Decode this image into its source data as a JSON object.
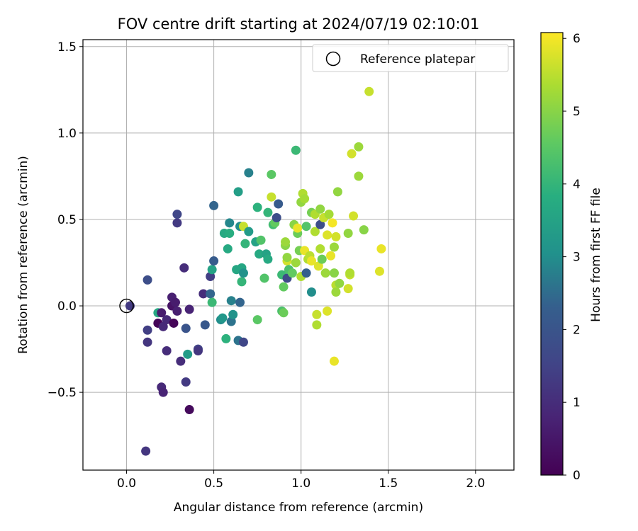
{
  "chart_data": {
    "type": "scatter",
    "title": "FOV centre drift starting at 2024/07/19 02:10:01",
    "xlabel": "Angular distance from reference (arcmin)",
    "ylabel": "Rotation from reference (arcmin)",
    "xlim": [
      -0.25,
      2.22
    ],
    "ylim": [
      -0.95,
      1.54
    ],
    "xticks": [
      0.0,
      0.5,
      1.0,
      1.5,
      2.0
    ],
    "xtick_labels": [
      "0.0",
      "0.5",
      "1.0",
      "1.5",
      "2.0"
    ],
    "yticks": [
      -0.5,
      0.0,
      0.5,
      1.0,
      1.5
    ],
    "ytick_labels": [
      "−0.5",
      "0.0",
      "0.5",
      "1.0",
      "1.5"
    ],
    "grid": true,
    "colormap": "viridis",
    "colorbar": {
      "label": "Hours from first FF file",
      "range": [
        0,
        6.08
      ],
      "ticks": [
        0,
        1,
        2,
        3,
        4,
        5,
        6
      ],
      "tick_labels": [
        "0",
        "1",
        "2",
        "3",
        "4",
        "5",
        "6"
      ]
    },
    "legend": {
      "position": "top-right",
      "entries": [
        "Reference platepar"
      ]
    },
    "reference_point": {
      "x": 0.0,
      "y": 0.0
    },
    "points": [
      {
        "x": 0.02,
        "y": 0.0,
        "h": 1.3
      },
      {
        "x": 0.12,
        "y": 0.15,
        "h": 1.8
      },
      {
        "x": 0.12,
        "y": -0.14,
        "h": 1.4
      },
      {
        "x": 0.12,
        "y": -0.21,
        "h": 1.2
      },
      {
        "x": 0.11,
        "y": -0.84,
        "h": 1.2
      },
      {
        "x": 0.18,
        "y": -0.04,
        "h": 3.7
      },
      {
        "x": 0.18,
        "y": -0.1,
        "h": 0.1
      },
      {
        "x": 0.2,
        "y": -0.04,
        "h": 0.6
      },
      {
        "x": 0.21,
        "y": -0.12,
        "h": 0.9
      },
      {
        "x": 0.2,
        "y": -0.47,
        "h": 0.9
      },
      {
        "x": 0.21,
        "y": -0.5,
        "h": 0.8
      },
      {
        "x": 0.23,
        "y": -0.08,
        "h": 0.9
      },
      {
        "x": 0.23,
        "y": -0.26,
        "h": 1.0
      },
      {
        "x": 0.26,
        "y": 0.05,
        "h": 0.7
      },
      {
        "x": 0.26,
        "y": 0.0,
        "h": 0.4
      },
      {
        "x": 0.28,
        "y": 0.02,
        "h": 0.6
      },
      {
        "x": 0.27,
        "y": -0.1,
        "h": 0.1
      },
      {
        "x": 0.29,
        "y": -0.03,
        "h": 0.7
      },
      {
        "x": 0.29,
        "y": 0.48,
        "h": 1.3
      },
      {
        "x": 0.29,
        "y": 0.53,
        "h": 1.6
      },
      {
        "x": 0.31,
        "y": -0.32,
        "h": 1.0
      },
      {
        "x": 0.33,
        "y": 0.22,
        "h": 1.0
      },
      {
        "x": 0.34,
        "y": -0.13,
        "h": 2.0
      },
      {
        "x": 0.34,
        "y": -0.44,
        "h": 1.3
      },
      {
        "x": 0.35,
        "y": -0.28,
        "h": 3.3
      },
      {
        "x": 0.36,
        "y": -0.6,
        "h": 0.2
      },
      {
        "x": 0.36,
        "y": -0.02,
        "h": 0.8
      },
      {
        "x": 0.41,
        "y": -0.25,
        "h": 1.5
      },
      {
        "x": 0.41,
        "y": -0.26,
        "h": 1.2
      },
      {
        "x": 0.44,
        "y": 0.07,
        "h": 1.0
      },
      {
        "x": 0.45,
        "y": -0.11,
        "h": 2.1
      },
      {
        "x": 0.48,
        "y": 0.17,
        "h": 1.4
      },
      {
        "x": 0.48,
        "y": 0.07,
        "h": 2.4
      },
      {
        "x": 0.49,
        "y": 0.21,
        "h": 3.5
      },
      {
        "x": 0.49,
        "y": 0.02,
        "h": 4.1
      },
      {
        "x": 0.5,
        "y": 0.26,
        "h": 2.2
      },
      {
        "x": 0.5,
        "y": 0.58,
        "h": 2.4
      },
      {
        "x": 0.54,
        "y": -0.08,
        "h": 3.0
      },
      {
        "x": 0.55,
        "y": -0.07,
        "h": 3.2
      },
      {
        "x": 0.56,
        "y": 0.42,
        "h": 3.7
      },
      {
        "x": 0.57,
        "y": -0.19,
        "h": 3.9
      },
      {
        "x": 0.58,
        "y": 0.33,
        "h": 3.7
      },
      {
        "x": 0.59,
        "y": 0.48,
        "h": 2.9
      },
      {
        "x": 0.6,
        "y": -0.09,
        "h": 2.6
      },
      {
        "x": 0.59,
        "y": 0.42,
        "h": 3.8
      },
      {
        "x": 0.6,
        "y": 0.03,
        "h": 2.8
      },
      {
        "x": 0.61,
        "y": -0.05,
        "h": 3.1
      },
      {
        "x": 0.63,
        "y": 0.21,
        "h": 3.6
      },
      {
        "x": 0.64,
        "y": -0.2,
        "h": 2.6
      },
      {
        "x": 0.64,
        "y": 0.66,
        "h": 3.4
      },
      {
        "x": 0.65,
        "y": 0.02,
        "h": 2.4
      },
      {
        "x": 0.65,
        "y": 0.46,
        "h": 3.0
      },
      {
        "x": 0.66,
        "y": 0.14,
        "h": 4.0
      },
      {
        "x": 0.66,
        "y": 0.22,
        "h": 3.6
      },
      {
        "x": 0.67,
        "y": 0.46,
        "h": 5.6
      },
      {
        "x": 0.67,
        "y": -0.21,
        "h": 1.6
      },
      {
        "x": 0.67,
        "y": 0.19,
        "h": 3.1
      },
      {
        "x": 0.68,
        "y": 0.36,
        "h": 4.0
      },
      {
        "x": 0.7,
        "y": 0.43,
        "h": 3.3
      },
      {
        "x": 0.7,
        "y": 0.77,
        "h": 2.8
      },
      {
        "x": 0.74,
        "y": 0.37,
        "h": 3.5
      },
      {
        "x": 0.75,
        "y": -0.08,
        "h": 4.5
      },
      {
        "x": 0.75,
        "y": 0.57,
        "h": 3.9
      },
      {
        "x": 0.76,
        "y": 0.3,
        "h": 3.7
      },
      {
        "x": 0.77,
        "y": 0.38,
        "h": 4.4
      },
      {
        "x": 0.79,
        "y": 0.16,
        "h": 4.4
      },
      {
        "x": 0.8,
        "y": 0.3,
        "h": 3.5
      },
      {
        "x": 0.81,
        "y": 0.54,
        "h": 4.0
      },
      {
        "x": 0.81,
        "y": 0.27,
        "h": 3.7
      },
      {
        "x": 0.83,
        "y": 0.76,
        "h": 4.5
      },
      {
        "x": 0.83,
        "y": 0.63,
        "h": 5.6
      },
      {
        "x": 0.84,
        "y": 0.47,
        "h": 4.2
      },
      {
        "x": 0.85,
        "y": 0.48,
        "h": 4.6
      },
      {
        "x": 0.86,
        "y": 0.51,
        "h": 1.8
      },
      {
        "x": 0.87,
        "y": 0.59,
        "h": 2.2
      },
      {
        "x": 0.89,
        "y": 0.18,
        "h": 4.1
      },
      {
        "x": 0.89,
        "y": -0.03,
        "h": 4.3
      },
      {
        "x": 0.9,
        "y": 0.11,
        "h": 4.6
      },
      {
        "x": 0.9,
        "y": -0.04,
        "h": 4.7
      },
      {
        "x": 0.91,
        "y": 0.35,
        "h": 5.0
      },
      {
        "x": 0.91,
        "y": 0.37,
        "h": 5.2
      },
      {
        "x": 0.92,
        "y": 0.16,
        "h": 1.7
      },
      {
        "x": 0.92,
        "y": 0.26,
        "h": 5.7
      },
      {
        "x": 0.92,
        "y": 0.28,
        "h": 5.1
      },
      {
        "x": 0.93,
        "y": 0.21,
        "h": 4.3
      },
      {
        "x": 0.95,
        "y": 0.19,
        "h": 4.6
      },
      {
        "x": 0.96,
        "y": 0.47,
        "h": 5.0
      },
      {
        "x": 0.97,
        "y": 0.9,
        "h": 4.1
      },
      {
        "x": 0.97,
        "y": 0.25,
        "h": 5.2
      },
      {
        "x": 0.98,
        "y": 0.42,
        "h": 4.7
      },
      {
        "x": 0.98,
        "y": 0.45,
        "h": 5.9
      },
      {
        "x": 0.99,
        "y": 0.32,
        "h": 4.8
      },
      {
        "x": 1.0,
        "y": 0.6,
        "h": 5.1
      },
      {
        "x": 1.0,
        "y": 0.17,
        "h": 5.4
      },
      {
        "x": 1.01,
        "y": 0.65,
        "h": 5.4
      },
      {
        "x": 1.02,
        "y": 0.62,
        "h": 5.3
      },
      {
        "x": 1.02,
        "y": 0.32,
        "h": 5.9
      },
      {
        "x": 1.03,
        "y": 0.19,
        "h": 2.3
      },
      {
        "x": 1.03,
        "y": 0.46,
        "h": 4.4
      },
      {
        "x": 1.04,
        "y": 0.27,
        "h": 5.4
      },
      {
        "x": 1.05,
        "y": 0.29,
        "h": 5.5
      },
      {
        "x": 1.06,
        "y": 0.26,
        "h": 5.9
      },
      {
        "x": 1.06,
        "y": 0.08,
        "h": 3.0
      },
      {
        "x": 1.06,
        "y": 0.54,
        "h": 4.8
      },
      {
        "x": 1.08,
        "y": 0.53,
        "h": 5.4
      },
      {
        "x": 1.08,
        "y": 0.43,
        "h": 5.4
      },
      {
        "x": 1.09,
        "y": -0.11,
        "h": 5.4
      },
      {
        "x": 1.09,
        "y": -0.05,
        "h": 5.6
      },
      {
        "x": 1.1,
        "y": 0.23,
        "h": 5.8
      },
      {
        "x": 1.11,
        "y": 0.47,
        "h": 1.8
      },
      {
        "x": 1.11,
        "y": 0.56,
        "h": 5.1
      },
      {
        "x": 1.11,
        "y": 0.33,
        "h": 5.4
      },
      {
        "x": 1.12,
        "y": 0.27,
        "h": 4.7
      },
      {
        "x": 1.13,
        "y": 0.51,
        "h": 5.6
      },
      {
        "x": 1.14,
        "y": 0.19,
        "h": 5.2
      },
      {
        "x": 1.15,
        "y": -0.03,
        "h": 5.8
      },
      {
        "x": 1.15,
        "y": 0.41,
        "h": 5.8
      },
      {
        "x": 1.16,
        "y": 0.53,
        "h": 5.3
      },
      {
        "x": 1.17,
        "y": 0.29,
        "h": 5.9
      },
      {
        "x": 1.18,
        "y": 0.48,
        "h": 6.0
      },
      {
        "x": 1.19,
        "y": 0.34,
        "h": 5.2
      },
      {
        "x": 1.19,
        "y": 0.19,
        "h": 5.0
      },
      {
        "x": 1.2,
        "y": 0.4,
        "h": 5.7
      },
      {
        "x": 1.19,
        "y": -0.32,
        "h": 5.9
      },
      {
        "x": 1.2,
        "y": 0.12,
        "h": 5.5
      },
      {
        "x": 1.2,
        "y": 0.08,
        "h": 5.2
      },
      {
        "x": 1.21,
        "y": 0.66,
        "h": 5.1
      },
      {
        "x": 1.22,
        "y": 0.13,
        "h": 5.1
      },
      {
        "x": 1.27,
        "y": 0.1,
        "h": 5.7
      },
      {
        "x": 1.27,
        "y": 0.42,
        "h": 5.1
      },
      {
        "x": 1.28,
        "y": 0.18,
        "h": 5.6
      },
      {
        "x": 1.28,
        "y": 0.19,
        "h": 5.4
      },
      {
        "x": 1.29,
        "y": 0.88,
        "h": 5.7
      },
      {
        "x": 1.3,
        "y": 0.52,
        "h": 5.7
      },
      {
        "x": 1.33,
        "y": 0.92,
        "h": 5.2
      },
      {
        "x": 1.33,
        "y": 0.75,
        "h": 5.2
      },
      {
        "x": 1.36,
        "y": 0.44,
        "h": 5.0
      },
      {
        "x": 1.39,
        "y": 1.24,
        "h": 5.6
      },
      {
        "x": 1.45,
        "y": 0.2,
        "h": 5.8
      },
      {
        "x": 1.46,
        "y": 0.33,
        "h": 5.9
      }
    ]
  }
}
